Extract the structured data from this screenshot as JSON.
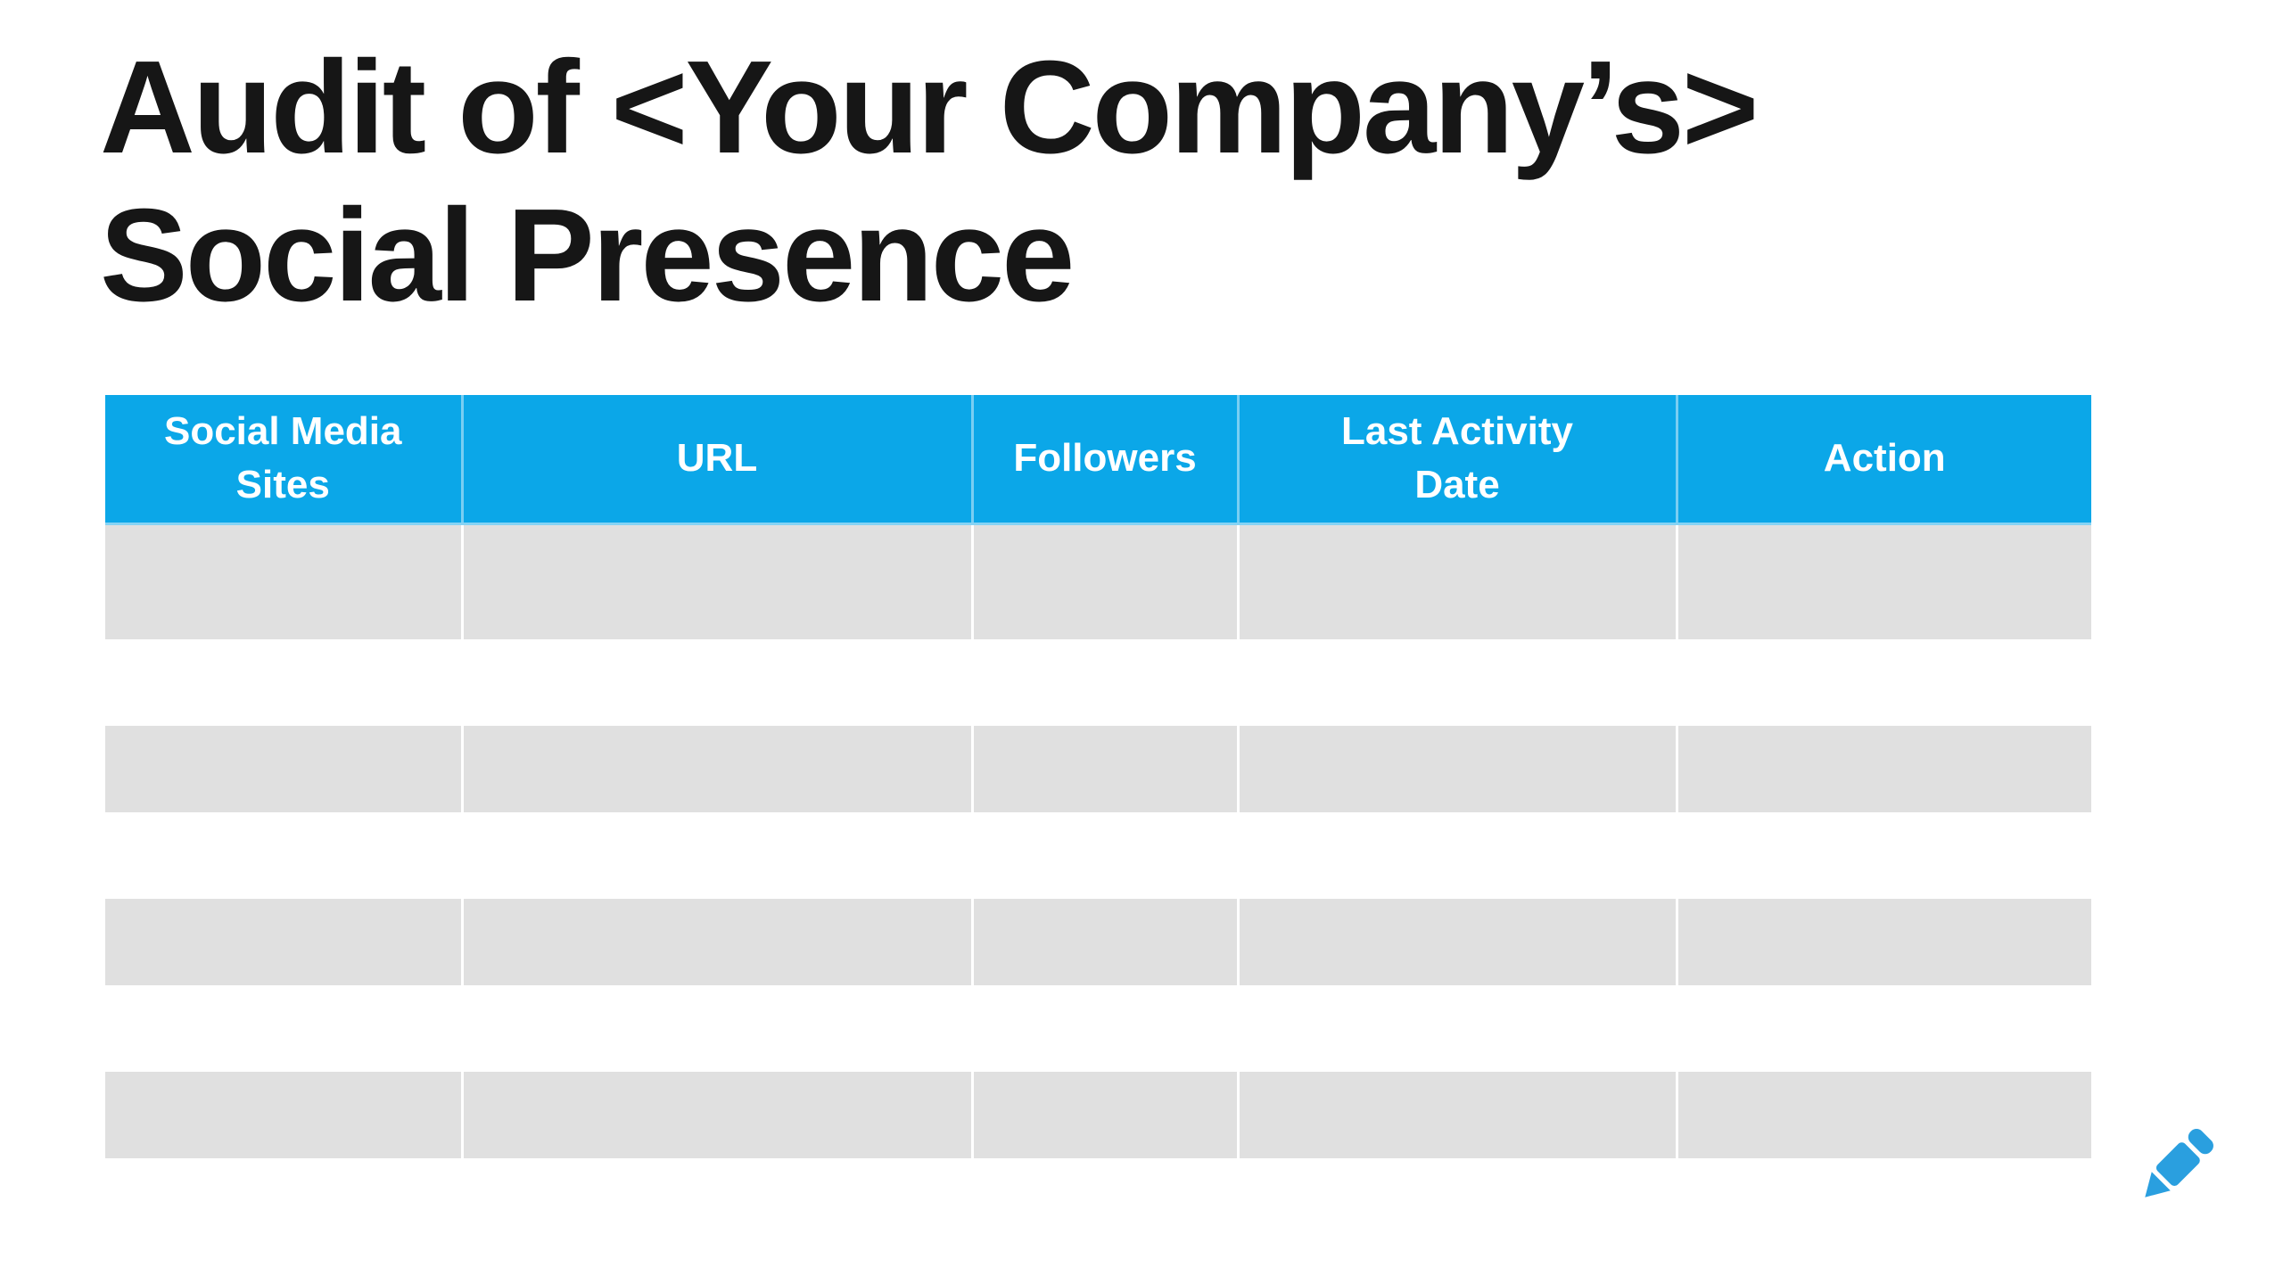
{
  "slide": {
    "title": {
      "line1": "Audit of <Your Company’s>",
      "line2": "Social Presence",
      "full": "Audit of <Your Company’s> Social Presence"
    }
  },
  "table": {
    "columns": [
      {
        "label": "Social Media Sites",
        "label_wrapped": "Social Media\nSites"
      },
      {
        "label": "URL",
        "label_wrapped": "URL"
      },
      {
        "label": "Followers",
        "label_wrapped": "Followers"
      },
      {
        "label": "Last Activity Date",
        "label_wrapped": "Last Activity\nDate"
      },
      {
        "label": "Action",
        "label_wrapped": "Action"
      }
    ],
    "row_count": 7,
    "rows": [
      [
        "",
        "",
        "",
        "",
        ""
      ],
      [
        "",
        "",
        "",
        "",
        ""
      ],
      [
        "",
        "",
        "",
        "",
        ""
      ],
      [
        "",
        "",
        "",
        "",
        ""
      ],
      [
        "",
        "",
        "",
        "",
        ""
      ],
      [
        "",
        "",
        "",
        "",
        ""
      ],
      [
        "",
        "",
        "",
        "",
        ""
      ]
    ]
  },
  "icons": {
    "edit_pencil": "pencil-icon"
  },
  "colors": {
    "header_bg": "#0ba7e8",
    "header_text": "#ffffff",
    "row_stripe": "#e0e0e0",
    "row_white": "#ffffff",
    "title_text": "#161616",
    "pencil_blue": "#2a9fdf",
    "background": "#ffffff"
  }
}
